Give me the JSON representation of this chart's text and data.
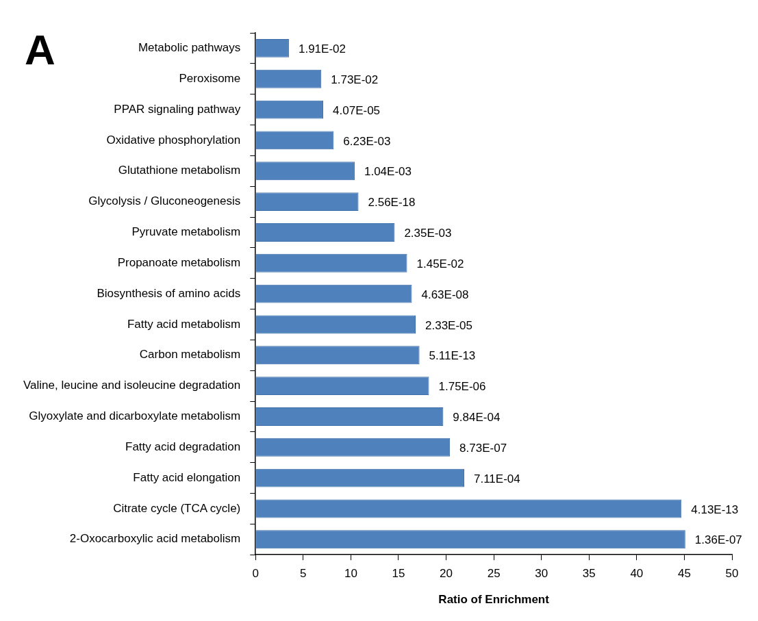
{
  "chart_data": {
    "type": "bar",
    "orientation": "horizontal",
    "title": "A",
    "xlabel": "Ratio of Enrichment",
    "categories": [
      "Metabolic pathways",
      "Peroxisome",
      "PPAR signaling pathway",
      "Oxidative phosphorylation",
      "Glutathione metabolism",
      "Glycolysis / Gluconeogenesis",
      "Pyruvate metabolism",
      "Propanoate metabolism",
      "Biosynthesis of amino acids",
      "Fatty acid metabolism",
      "Carbon metabolism",
      "Valine, leucine and isoleucine degradation",
      "Glyoxylate and dicarboxylate metabolism",
      "Fatty acid degradation",
      "Fatty acid elongation",
      "Citrate cycle (TCA cycle)",
      "2-Oxocarboxylic acid metabolism"
    ],
    "values": [
      3.5,
      6.9,
      7.1,
      8.2,
      10.4,
      10.8,
      14.6,
      15.9,
      16.4,
      16.8,
      17.2,
      18.2,
      19.7,
      20.4,
      21.9,
      44.7,
      45.1
    ],
    "annotations": [
      {
        "text": "1.91E-02",
        "x": 3.5,
        "y": "Metabolic pathways"
      },
      {
        "text": "1.73E-02",
        "x": 6.9,
        "y": "Peroxisome"
      },
      {
        "text": "4.07E-05",
        "x": 7.1,
        "y": "PPAR signaling pathway"
      },
      {
        "text": "6.23E-03",
        "x": 8.2,
        "y": "Oxidative phosphorylation"
      },
      {
        "text": "1.04E-03",
        "x": 10.4,
        "y": "Glutathione metabolism"
      },
      {
        "text": "2.56E-18",
        "x": 10.8,
        "y": "Glycolysis / Gluconeogenesis"
      },
      {
        "text": "2.35E-03",
        "x": 14.6,
        "y": "Pyruvate metabolism"
      },
      {
        "text": "1.45E-02",
        "x": 15.9,
        "y": "Propanoate metabolism"
      },
      {
        "text": "4.63E-08",
        "x": 16.4,
        "y": "Biosynthesis of amino acids"
      },
      {
        "text": "2.33E-05",
        "x": 16.8,
        "y": "Fatty acid metabolism"
      },
      {
        "text": "5.11E-13",
        "x": 17.2,
        "y": "Carbon metabolism"
      },
      {
        "text": "1.75E-06",
        "x": 18.2,
        "y": "Valine, leucine and isoleucine degradation"
      },
      {
        "text": "9.84E-04",
        "x": 19.7,
        "y": "Glyoxylate and dicarboxylate metabolism"
      },
      {
        "text": "8.73E-07",
        "x": 20.4,
        "y": "Fatty acid degradation"
      },
      {
        "text": "7.11E-04",
        "x": 21.9,
        "y": "Fatty acid elongation"
      },
      {
        "text": "4.13E-13",
        "x": 44.7,
        "y": "Citrate cycle (TCA cycle)"
      },
      {
        "text": "1.36E-07",
        "x": 45.1,
        "y": "2-Oxocarboxylic acid metabolism"
      }
    ],
    "color": "#4f81bd",
    "xlim": [
      0,
      50
    ],
    "xticks": [
      0,
      5,
      10,
      15,
      20,
      25,
      30,
      35,
      40,
      45,
      50
    ],
    "grid": false,
    "legend": false
  }
}
